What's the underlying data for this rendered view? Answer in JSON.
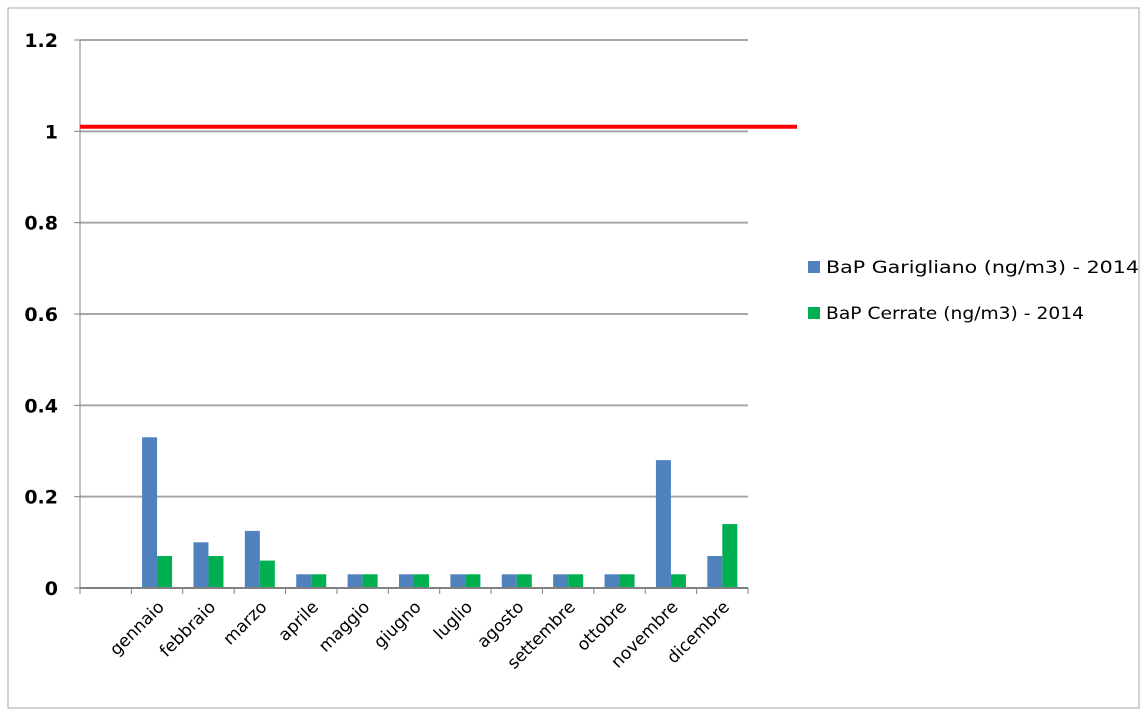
{
  "colors": {
    "series_0": "#4f81bd",
    "series_1": "#00b050",
    "threshold": "#ff0000",
    "grid": "#a6a6a6",
    "axis": "#808080"
  },
  "chart_data": {
    "type": "bar",
    "categories": [
      "gennaio",
      "febbraio",
      "marzo",
      "aprile",
      "maggio",
      "giugno",
      "luglio",
      "agosto",
      "settembre",
      "ottobre",
      "novembre",
      "dicembre"
    ],
    "series": [
      {
        "name": "BaP Garigliano (ng/m3) - 2014",
        "values": [
          0.33,
          0.1,
          0.125,
          0.03,
          0.03,
          0.03,
          0.03,
          0.03,
          0.03,
          0.03,
          0.28,
          0.07
        ]
      },
      {
        "name": "BaP Cerrate (ng/m3) - 2014",
        "values": [
          0.07,
          0.07,
          0.06,
          0.03,
          0.03,
          0.03,
          0.03,
          0.03,
          0.03,
          0.03,
          0.03,
          0.14
        ]
      }
    ],
    "threshold": 1.01,
    "ylim": [
      0,
      1.2
    ],
    "yticks": [
      "0",
      "0.2",
      "0.4",
      "0.6",
      "0.8",
      "1",
      "1.2"
    ],
    "grid": true,
    "legend_position": "right",
    "title": "",
    "xlabel": "",
    "ylabel": ""
  }
}
